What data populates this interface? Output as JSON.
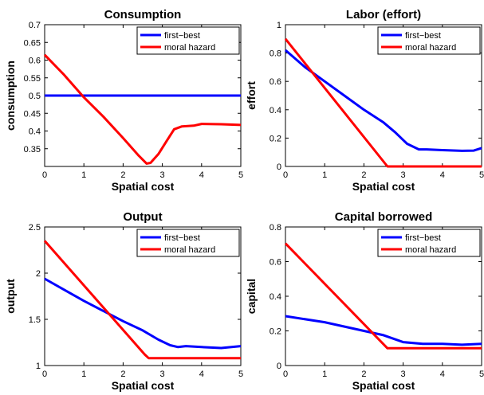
{
  "figure": {
    "background": "#ffffff"
  },
  "chart_data": [
    {
      "type": "line",
      "title": "Consumption",
      "xlabel": "Spatial cost",
      "ylabel": "consumption",
      "xlim": [
        0,
        5
      ],
      "ylim": [
        0.3,
        0.7
      ],
      "xticks": [
        "0",
        "1",
        "2",
        "3",
        "4",
        "5"
      ],
      "yticks": [
        "0.35",
        "0.4",
        "0.45",
        "0.5",
        "0.55",
        "0.6",
        "0.65",
        "0.7"
      ],
      "ytick_values": [
        0.35,
        0.4,
        0.45,
        0.5,
        0.55,
        0.6,
        0.65,
        0.7
      ],
      "legend": "top-right",
      "grid": false,
      "series": [
        {
          "name": "first−best",
          "color": "#0000ff",
          "x": [
            0,
            5
          ],
          "y": [
            0.5,
            0.5
          ]
        },
        {
          "name": "moral hazard",
          "color": "#ff0000",
          "x": [
            0,
            0.5,
            1.0,
            1.5,
            2.0,
            2.4,
            2.6,
            2.7,
            2.9,
            3.1,
            3.3,
            3.5,
            3.8,
            4.0,
            4.5,
            5.0
          ],
          "y": [
            0.615,
            0.558,
            0.495,
            0.44,
            0.38,
            0.33,
            0.308,
            0.31,
            0.335,
            0.37,
            0.405,
            0.413,
            0.415,
            0.42,
            0.419,
            0.417
          ]
        }
      ]
    },
    {
      "type": "line",
      "title": "Labor (effort)",
      "xlabel": "Spatial cost",
      "ylabel": "effort",
      "xlim": [
        0,
        5
      ],
      "ylim": [
        0,
        1
      ],
      "xticks": [
        "0",
        "1",
        "2",
        "3",
        "4",
        "5"
      ],
      "yticks": [
        "0",
        "0.2",
        "0.4",
        "0.6",
        "0.8",
        "1"
      ],
      "ytick_values": [
        0,
        0.2,
        0.4,
        0.6,
        0.8,
        1
      ],
      "legend": "top-right",
      "grid": false,
      "series": [
        {
          "name": "first−best",
          "color": "#0000ff",
          "x": [
            0,
            0.5,
            1.0,
            1.5,
            2.0,
            2.5,
            2.8,
            3.1,
            3.4,
            3.6,
            4.0,
            4.5,
            4.8,
            5.0
          ],
          "y": [
            0.82,
            0.7,
            0.6,
            0.5,
            0.4,
            0.31,
            0.24,
            0.16,
            0.12,
            0.12,
            0.115,
            0.11,
            0.112,
            0.13
          ]
        },
        {
          "name": "moral hazard",
          "color": "#ff0000",
          "x": [
            0,
            2.6,
            5.0
          ],
          "y": [
            0.9,
            0.0,
            0.0
          ]
        }
      ]
    },
    {
      "type": "line",
      "title": "Output",
      "xlabel": "Spatial cost",
      "ylabel": "output",
      "xlim": [
        0,
        5
      ],
      "ylim": [
        1,
        2.5
      ],
      "xticks": [
        "0",
        "1",
        "2",
        "3",
        "4",
        "5"
      ],
      "yticks": [
        "1",
        "1.5",
        "2",
        "2.5"
      ],
      "ytick_values": [
        1,
        1.5,
        2,
        2.5
      ],
      "legend": "top-right",
      "grid": false,
      "series": [
        {
          "name": "first−best",
          "color": "#0000ff",
          "x": [
            0,
            0.5,
            1.0,
            1.5,
            2.0,
            2.5,
            2.9,
            3.2,
            3.4,
            3.6,
            4.0,
            4.5,
            5.0
          ],
          "y": [
            1.94,
            1.82,
            1.7,
            1.59,
            1.48,
            1.38,
            1.28,
            1.22,
            1.2,
            1.21,
            1.2,
            1.19,
            1.21
          ]
        },
        {
          "name": "moral hazard",
          "color": "#ff0000",
          "x": [
            0,
            2.55,
            2.65,
            5.0
          ],
          "y": [
            2.35,
            1.12,
            1.08,
            1.08
          ]
        }
      ]
    },
    {
      "type": "line",
      "title": "Capital borrowed",
      "xlabel": "Spatial cost",
      "ylabel": "capital",
      "xlim": [
        0,
        5
      ],
      "ylim": [
        0,
        0.8
      ],
      "xticks": [
        "0",
        "1",
        "2",
        "3",
        "4",
        "5"
      ],
      "yticks": [
        "0",
        "0.2",
        "0.4",
        "0.6",
        "0.8"
      ],
      "ytick_values": [
        0,
        0.2,
        0.4,
        0.6,
        0.8
      ],
      "legend": "top-right",
      "grid": false,
      "series": [
        {
          "name": "first−best",
          "color": "#0000ff",
          "x": [
            0,
            1.0,
            2.0,
            2.5,
            3.0,
            3.5,
            4.0,
            4.5,
            5.0
          ],
          "y": [
            0.285,
            0.25,
            0.2,
            0.175,
            0.135,
            0.125,
            0.125,
            0.12,
            0.125
          ]
        },
        {
          "name": "moral hazard",
          "color": "#ff0000",
          "x": [
            0,
            2.6,
            5.0
          ],
          "y": [
            0.705,
            0.1,
            0.1
          ]
        }
      ]
    }
  ]
}
